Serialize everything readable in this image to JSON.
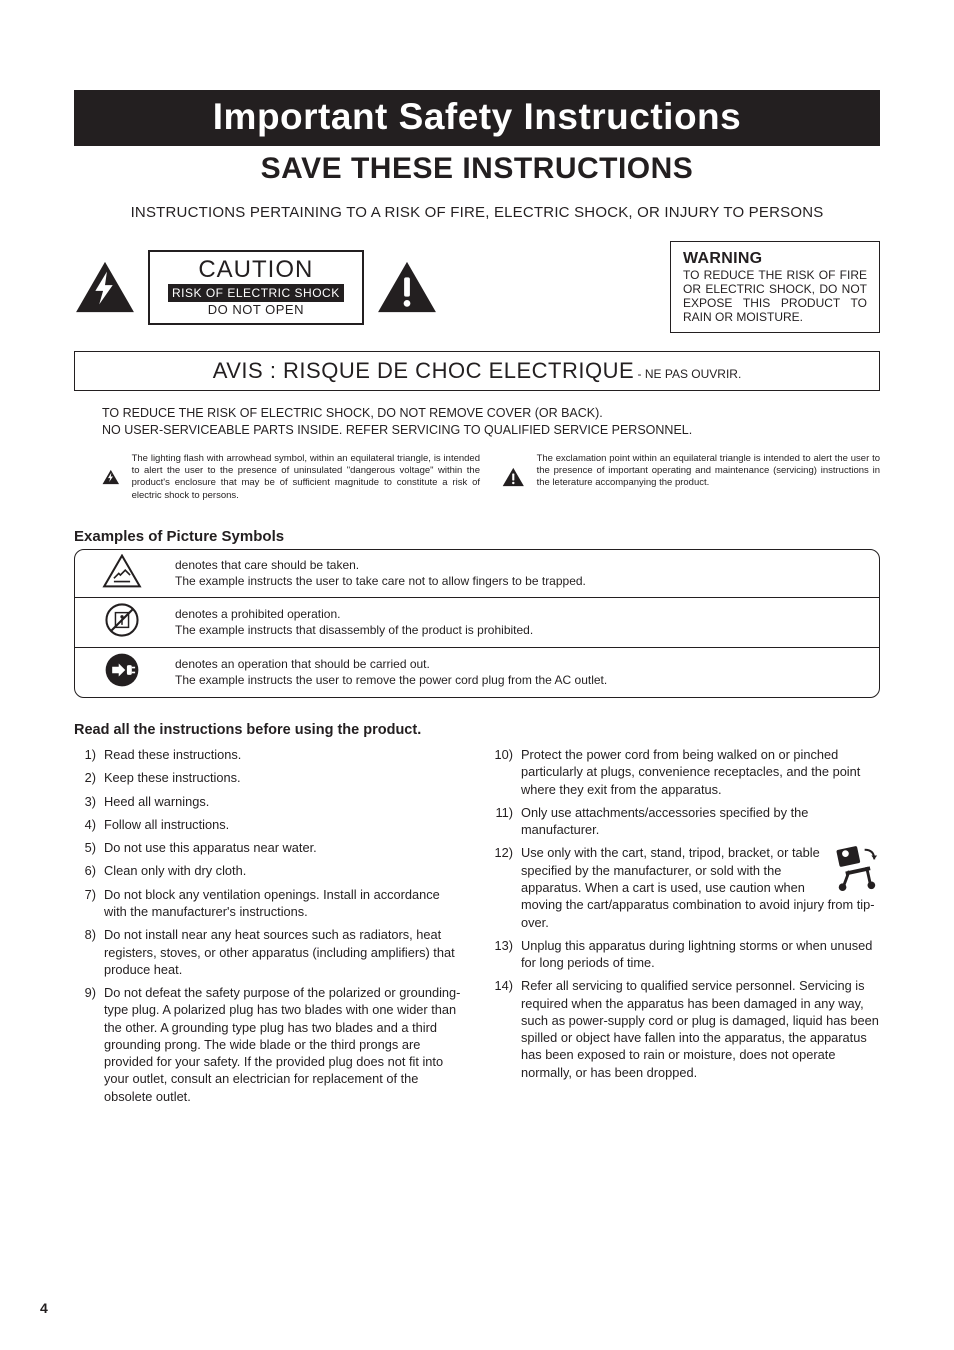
{
  "colors": {
    "ink": "#231f20",
    "paper": "#ffffff"
  },
  "page_number": "4",
  "main_title": "Important Safety Instructions",
  "save_title": "SAVE THESE INSTRUCTIONS",
  "subtitle": "INSTRUCTIONS PERTAINING TO A RISK OF FIRE, ELECTRIC SHOCK, OR INJURY TO PERSONS",
  "caution": {
    "caption": "CAUTION",
    "risk": "RISK OF ELECTRIC SHOCK",
    "donot": "DO NOT OPEN"
  },
  "warning": {
    "title": "WARNING",
    "body": "TO REDUCE THE RISK OF FIRE OR ELECTRIC SHOCK, DO NOT EXPOSE THIS PRODUCT TO RAIN OR MOISTURE."
  },
  "avis": {
    "main": "AVIS : RISQUE DE CHOC ELECTRIQUE",
    "sub": " - NE PAS OUVRIR."
  },
  "reduce_lines": [
    "TO REDUCE THE RISK OF ELECTRIC SHOCK, DO NOT REMOVE COVER (OR BACK).",
    "NO USER-SERVICEABLE PARTS INSIDE.  REFER SERVICING TO QUALIFIED SERVICE PERSONNEL."
  ],
  "symbol_explanations": [
    "The lighting flash with arrowhead symbol, within an equilateral triangle, is intended to alert the user to the presence of uninsulated \"dangerous voltage\" within the product's enclosure that may be of sufficient magnitude to constitute a risk of electric shock to persons.",
    "The exclamation point within an equilateral triangle is intended to alert the user to the presence of important operating and maintenance (servicing) instructions in the leterature accompanying the product."
  ],
  "examples_title": "Examples of Picture Symbols",
  "pic_rows": [
    {
      "line1": "denotes that care should be taken.",
      "line2": "The example instructs the user to take care not to allow fingers to be trapped."
    },
    {
      "line1": "denotes a prohibited operation.",
      "line2": "The example instructs that disassembly of the product is prohibited."
    },
    {
      "line1": "denotes an operation that should be carried out.",
      "line2": "The example instructs the user to remove the power cord plug from the AC outlet."
    }
  ],
  "read_all": "Read all the instructions before using the product.",
  "instructions_left": [
    {
      "n": "1)",
      "t": "Read these instructions."
    },
    {
      "n": "2)",
      "t": "Keep these instructions."
    },
    {
      "n": "3)",
      "t": "Heed all warnings."
    },
    {
      "n": "4)",
      "t": "Follow all instructions."
    },
    {
      "n": "5)",
      "t": "Do not use this apparatus near water."
    },
    {
      "n": "6)",
      "t": "Clean only with dry cloth."
    },
    {
      "n": "7)",
      "t": "Do not block any ventilation openings. Install in accordance with the manufacturer's instructions."
    },
    {
      "n": "8)",
      "t": "Do not install near any heat sources such as radiators, heat registers, stoves, or other apparatus (including amplifiers) that produce heat."
    },
    {
      "n": "9)",
      "t": "Do not defeat the safety purpose of the polarized or grounding-type plug. A polarized plug has two blades with one wider than the other. A grounding type plug has two blades and a third grounding prong. The wide blade or the third prongs are provided for your safety. If the provided plug does not fit into your outlet, consult an electrician for replacement of the obsolete outlet."
    }
  ],
  "instructions_right": [
    {
      "n": "10)",
      "t": "Protect the power cord from being walked on or pinched particularly at plugs, convenience receptacles, and the point where they exit from the apparatus."
    },
    {
      "n": "11)",
      "t": "Only use attachments/accessories specified by the manufacturer."
    },
    {
      "n": "12)",
      "t": "Use only with the cart, stand, tripod, bracket, or table specified by the manufacturer, or sold with the apparatus. When a cart is used, use caution when moving the cart/apparatus combination to avoid injury from tip-over.",
      "cart": true
    },
    {
      "n": "13)",
      "t": "Unplug this apparatus during lightning storms or when unused for long periods of time."
    },
    {
      "n": "14)",
      "t": "Refer all servicing to qualified service personnel. Servicing is required when the apparatus has been damaged in any way, such as power-supply cord or plug is damaged, liquid has been spilled or object have fallen into the apparatus, the apparatus has been exposed to rain or moisture, does not operate normally, or has been dropped."
    }
  ]
}
